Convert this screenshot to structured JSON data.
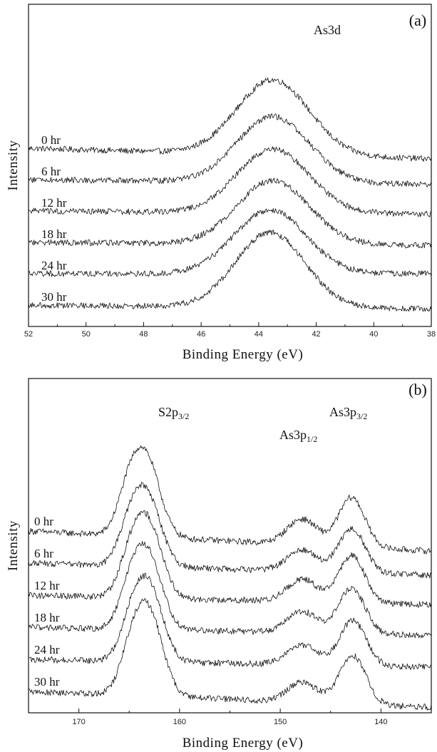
{
  "chart_data": [
    {
      "type": "line",
      "panel_label": "(a)",
      "xlabel": "Binding Energy (eV)",
      "ylabel": "Intensity",
      "xlim": [
        52,
        38
      ],
      "x_ticks": [
        52,
        50,
        48,
        46,
        44,
        42,
        40,
        38
      ],
      "x_reversed": true,
      "peaks": [
        {
          "label": "As3d",
          "sub": "",
          "x": 43.5
        }
      ],
      "series": [
        {
          "name": "0 hr",
          "offset": 5,
          "amplitude": 1.0,
          "baseline_left": 0.0,
          "baseline_right": -0.14,
          "components": [
            {
              "center": 43.5,
              "width": 1.25
            }
          ]
        },
        {
          "name": "6 hr",
          "offset": 4,
          "amplitude": 0.88,
          "baseline_left": 0.0,
          "baseline_right": -0.06,
          "components": [
            {
              "center": 43.5,
              "width": 1.25
            }
          ]
        },
        {
          "name": "12 hr",
          "offset": 3,
          "amplitude": 0.85,
          "baseline_left": 0.0,
          "baseline_right": -0.04,
          "components": [
            {
              "center": 43.5,
              "width": 1.25
            }
          ]
        },
        {
          "name": "18 hr",
          "offset": 2,
          "amplitude": 0.85,
          "baseline_left": 0.0,
          "baseline_right": -0.04,
          "components": [
            {
              "center": 43.5,
              "width": 1.25
            }
          ]
        },
        {
          "name": "24 hr",
          "offset": 1,
          "amplitude": 0.85,
          "baseline_left": 0.0,
          "baseline_right": 0.0,
          "components": [
            {
              "center": 43.6,
              "width": 1.25
            }
          ]
        },
        {
          "name": "30 hr",
          "offset": 0,
          "amplitude": 1.0,
          "baseline_left": 0.0,
          "baseline_right": -0.05,
          "components": [
            {
              "center": 43.6,
              "width": 1.2
            }
          ]
        }
      ]
    },
    {
      "type": "line",
      "panel_label": "(b)",
      "xlabel": "Binding Energy (eV)",
      "ylabel": "Intensity",
      "xlim": [
        175,
        135
      ],
      "x_ticks": [
        170,
        160,
        150,
        140
      ],
      "x_reversed": true,
      "peaks": [
        {
          "label": "S2p",
          "sub": "3/2",
          "x": 163.5
        },
        {
          "label": "As3p",
          "sub": "1/2",
          "x": 147.8
        },
        {
          "label": "As3p",
          "sub": "3/2",
          "x": 142.9
        }
      ],
      "series": [
        {
          "name": "0 hr",
          "offset": 5,
          "amplitude": 1.0,
          "baseline_left": 0.0,
          "baseline_right": -0.25,
          "components": [
            {
              "center": 163.4,
              "width": 1.4,
              "rel": 1.0
            },
            {
              "center": 165.2,
              "width": 1.1,
              "rel": 0.38
            },
            {
              "center": 147.8,
              "width": 1.5,
              "rel": 0.32
            },
            {
              "center": 142.9,
              "width": 1.3,
              "rel": 0.62
            }
          ]
        },
        {
          "name": "6 hr",
          "offset": 4,
          "amplitude": 0.9,
          "baseline_left": 0.0,
          "baseline_right": -0.15,
          "components": [
            {
              "center": 163.3,
              "width": 1.4,
              "rel": 1.0
            },
            {
              "center": 165.1,
              "width": 1.1,
              "rel": 0.38
            },
            {
              "center": 147.8,
              "width": 1.5,
              "rel": 0.3
            },
            {
              "center": 142.9,
              "width": 1.3,
              "rel": 0.62
            }
          ]
        },
        {
          "name": "12 hr",
          "offset": 3,
          "amplitude": 0.95,
          "baseline_left": 0.0,
          "baseline_right": -0.12,
          "components": [
            {
              "center": 163.2,
              "width": 1.4,
              "rel": 1.0
            },
            {
              "center": 165.0,
              "width": 1.1,
              "rel": 0.38
            },
            {
              "center": 147.8,
              "width": 1.5,
              "rel": 0.3
            },
            {
              "center": 142.9,
              "width": 1.3,
              "rel": 0.62
            }
          ]
        },
        {
          "name": "18 hr",
          "offset": 2,
          "amplitude": 0.95,
          "baseline_left": 0.0,
          "baseline_right": -0.1,
          "components": [
            {
              "center": 163.2,
              "width": 1.4,
              "rel": 1.0
            },
            {
              "center": 165.0,
              "width": 1.1,
              "rel": 0.38
            },
            {
              "center": 147.8,
              "width": 1.5,
              "rel": 0.28
            },
            {
              "center": 142.9,
              "width": 1.3,
              "rel": 0.6
            }
          ]
        },
        {
          "name": "24 hr",
          "offset": 1,
          "amplitude": 0.95,
          "baseline_left": 0.0,
          "baseline_right": -0.1,
          "components": [
            {
              "center": 163.1,
              "width": 1.4,
              "rel": 1.0
            },
            {
              "center": 164.9,
              "width": 1.1,
              "rel": 0.38
            },
            {
              "center": 147.8,
              "width": 1.5,
              "rel": 0.26
            },
            {
              "center": 142.8,
              "width": 1.3,
              "rel": 0.6
            }
          ]
        },
        {
          "name": "30 hr",
          "offset": 0,
          "amplitude": 1.05,
          "baseline_left": 0.0,
          "baseline_right": -0.2,
          "components": [
            {
              "center": 163.1,
              "width": 1.4,
              "rel": 1.0
            },
            {
              "center": 164.9,
              "width": 1.1,
              "rel": 0.38
            },
            {
              "center": 147.8,
              "width": 1.5,
              "rel": 0.24
            },
            {
              "center": 142.8,
              "width": 1.3,
              "rel": 0.58
            }
          ]
        }
      ]
    }
  ]
}
